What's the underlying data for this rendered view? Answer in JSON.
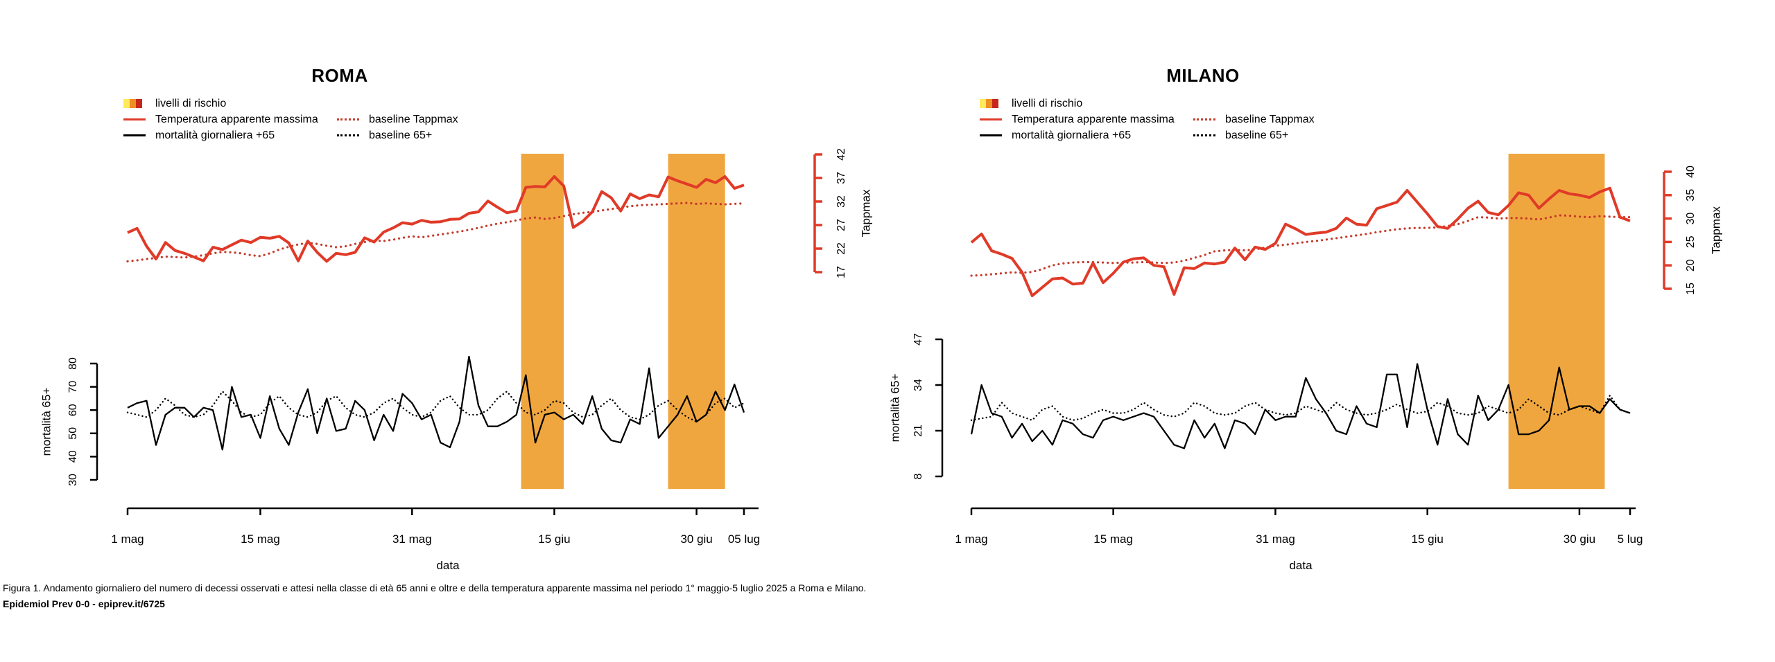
{
  "figure": {
    "caption": "Figura 1. Andamento giornaliero del numero di decessi osservati e attesi nella classe di età 65 anni e oltre e della temperatura apparente massima nel periodo 1° maggio-5 luglio 2025 a Roma e Milano.",
    "source": "Epidemiol Prev 0-0 - epiprev.it/6725"
  },
  "legend": {
    "risk_label": "livelli di rischio",
    "temp_label": "Temperatura apparente massima",
    "temp_baseline_label": "baseline Tappmax",
    "mort_label": "mortalità giornaliera +65",
    "mort_baseline_label": "baseline 65+"
  },
  "colors": {
    "temperature": "#e03a28",
    "temperature_baseline": "#c53a2a",
    "mortality": "#000000",
    "risk_band": "#f0a63e",
    "risk_swatch_yellow": "#ffe95c",
    "risk_swatch_orange": "#ee8f22",
    "risk_swatch_red": "#c5271d",
    "text": "#000000"
  },
  "chart_data": [
    {
      "type": "line",
      "title": "ROMA",
      "xlabel": "data",
      "x_ticks": [
        {
          "label": "1 mag",
          "day": 0
        },
        {
          "label": "15 mag",
          "day": 14
        },
        {
          "label": "31 mag",
          "day": 30
        },
        {
          "label": "15 giu",
          "day": 45
        },
        {
          "label": "30 giu",
          "day": 60
        },
        {
          "label": "05 lug",
          "day": 65
        }
      ],
      "temp_axis": {
        "label": "Tappmax",
        "min": 17,
        "max": 42,
        "ticks": [
          17,
          22,
          27,
          32,
          37,
          42
        ]
      },
      "mort_axis": {
        "label": "mortalità 65+",
        "min": 30,
        "max": 80,
        "ticks": [
          30,
          40,
          50,
          60,
          70,
          80
        ]
      },
      "risk_bands": [
        {
          "start_day": 41.5,
          "end_day": 46.0
        },
        {
          "start_day": 57.0,
          "end_day": 63.0
        }
      ],
      "series": {
        "tappmax": [
          25.4,
          26.3,
          22.5,
          19.8,
          23.3,
          21.6,
          21.0,
          20.2,
          19.4,
          22.3,
          21.8,
          22.8,
          23.8,
          23.3,
          24.4,
          24.2,
          24.6,
          23.2,
          19.4,
          23.6,
          21.2,
          19.3,
          21.0,
          20.7,
          21.2,
          24.3,
          23.4,
          25.5,
          26.4,
          27.5,
          27.2,
          28.0,
          27.6,
          27.7,
          28.2,
          28.3,
          29.5,
          29.8,
          32.1,
          30.8,
          29.6,
          30.0,
          35.0,
          35.2,
          35.1,
          37.3,
          35.3,
          26.5,
          27.8,
          29.8,
          34.1,
          32.8,
          30.0,
          33.6,
          32.6,
          33.4,
          33.0,
          37.2,
          36.4,
          35.7,
          35.0,
          36.7,
          36.0,
          37.3,
          34.8,
          35.5
        ],
        "baseline_tappmax": [
          19.3,
          19.5,
          19.8,
          20.0,
          20.3,
          20.2,
          20.1,
          20.3,
          20.6,
          21.0,
          21.3,
          21.2,
          21.0,
          20.6,
          20.4,
          21.0,
          21.8,
          22.4,
          22.9,
          23.2,
          23.0,
          22.6,
          22.3,
          22.5,
          23.0,
          23.4,
          23.7,
          23.6,
          23.9,
          24.3,
          24.6,
          24.4,
          24.7,
          25.0,
          25.3,
          25.6,
          26.0,
          26.4,
          26.9,
          27.3,
          27.6,
          28.0,
          28.4,
          28.6,
          28.3,
          28.5,
          28.9,
          29.3,
          29.6,
          29.8,
          30.1,
          30.4,
          30.7,
          31.0,
          31.2,
          31.3,
          31.4,
          31.5,
          31.6,
          31.7,
          31.5,
          31.6,
          31.5,
          31.4,
          31.5,
          31.6
        ],
        "mortality_65plus": [
          61,
          63,
          64,
          45,
          58,
          61,
          61,
          57,
          61,
          60,
          43,
          70,
          57,
          58,
          48,
          66,
          52,
          45,
          59,
          69,
          50,
          65,
          51,
          52,
          64,
          60,
          47,
          58,
          51,
          67,
          63,
          56,
          58,
          46,
          44,
          55,
          83,
          62,
          53,
          53,
          55,
          58,
          75,
          46,
          58,
          59,
          56,
          58,
          54,
          66,
          52,
          47,
          46,
          56,
          54,
          78,
          48,
          53,
          58,
          66,
          55,
          58,
          68,
          60,
          71,
          59
        ],
        "baseline_65plus": [
          59,
          58,
          57,
          60,
          65,
          62,
          58,
          57,
          58,
          62,
          68,
          64,
          59,
          57,
          58,
          63,
          66,
          61,
          58,
          57,
          59,
          64,
          66,
          61,
          58,
          57,
          59,
          63,
          65,
          61,
          58,
          57,
          59,
          64,
          66,
          61,
          58,
          58,
          60,
          65,
          68,
          63,
          59,
          58,
          60,
          64,
          63,
          59,
          57,
          58,
          62,
          65,
          60,
          57,
          56,
          58,
          62,
          64,
          60,
          57,
          55,
          58,
          63,
          65,
          61,
          63
        ]
      }
    },
    {
      "type": "line",
      "title": "MILANO",
      "xlabel": "data",
      "x_ticks": [
        {
          "label": "1 mag",
          "day": 0
        },
        {
          "label": "15 mag",
          "day": 14
        },
        {
          "label": "31 mag",
          "day": 30
        },
        {
          "label": "15 giu",
          "day": 45
        },
        {
          "label": "30 giu",
          "day": 60
        },
        {
          "label": "5 lug",
          "day": 65
        }
      ],
      "temp_axis": {
        "label": "Tappmax",
        "min": 15,
        "max": 40,
        "ticks": [
          15,
          20,
          25,
          30,
          35,
          40
        ]
      },
      "mort_axis": {
        "label": "mortalità 65+",
        "min": 8,
        "max": 47,
        "ticks": [
          8,
          21,
          34,
          47
        ]
      },
      "risk_bands": [
        {
          "start_day": 53.0,
          "end_day": 62.5
        }
      ],
      "series": {
        "tappmax": [
          24.9,
          26.7,
          23.1,
          22.4,
          21.5,
          18.5,
          13.5,
          15.3,
          17.1,
          17.3,
          16.0,
          16.2,
          20.5,
          16.3,
          18.3,
          20.7,
          21.4,
          21.6,
          20.0,
          19.7,
          13.8,
          19.5,
          19.3,
          20.5,
          20.3,
          20.7,
          23.7,
          21.2,
          23.9,
          23.4,
          24.7,
          28.8,
          27.8,
          26.6,
          26.9,
          27.1,
          27.9,
          30.1,
          28.8,
          28.6,
          32.1,
          32.8,
          33.5,
          36.0,
          33.5,
          31.0,
          28.3,
          27.9,
          29.9,
          32.2,
          33.7,
          31.3,
          30.8,
          32.8,
          35.5,
          35.0,
          32.2,
          34.2,
          36.0,
          35.3,
          35.0,
          34.5,
          35.7,
          36.5,
          30.3,
          29.5
        ],
        "baseline_tappmax": [
          17.8,
          17.9,
          18.1,
          18.3,
          18.5,
          18.4,
          18.6,
          19.2,
          20.0,
          20.4,
          20.6,
          20.7,
          20.7,
          20.6,
          20.5,
          20.6,
          20.6,
          20.7,
          20.6,
          20.5,
          20.6,
          21.0,
          21.6,
          22.2,
          23.0,
          23.2,
          23.3,
          23.2,
          23.4,
          23.8,
          24.2,
          24.4,
          24.7,
          25.0,
          25.2,
          25.5,
          25.8,
          26.1,
          26.4,
          26.7,
          27.1,
          27.4,
          27.7,
          27.9,
          28.0,
          28.0,
          28.1,
          28.4,
          28.8,
          29.5,
          30.3,
          30.2,
          30.0,
          30.1,
          30.1,
          30.0,
          29.8,
          30.2,
          30.7,
          30.6,
          30.4,
          30.3,
          30.5,
          30.4,
          30.3,
          30.3
        ],
        "mortality_65plus": [
          20,
          34,
          26,
          25,
          19,
          23,
          18,
          21,
          17,
          24,
          23,
          20,
          19,
          24,
          25,
          24,
          25,
          26,
          25,
          21,
          17,
          16,
          24,
          19,
          23,
          16,
          24,
          23,
          20,
          27,
          24,
          25,
          25,
          36,
          30,
          26,
          21,
          20,
          28,
          23,
          22,
          37,
          37,
          22,
          40,
          27,
          17,
          30,
          20,
          17,
          31,
          24,
          27,
          34,
          20,
          20,
          21,
          24,
          39,
          27,
          28,
          28,
          26,
          30,
          27,
          26
        ],
        "baseline_65plus": [
          24,
          24.5,
          25,
          29,
          26,
          25,
          24,
          27,
          28,
          25,
          24,
          24.5,
          26,
          27,
          26,
          26,
          27,
          29,
          27,
          25.5,
          25,
          26,
          29,
          28,
          26,
          25.5,
          26,
          28,
          29,
          27,
          26,
          25.5,
          26,
          28,
          27,
          26,
          29,
          27,
          26,
          25.5,
          26,
          27,
          28.5,
          27,
          26,
          26.5,
          29,
          28,
          26,
          25.5,
          26,
          28,
          27,
          26,
          27,
          30,
          28,
          26,
          25.5,
          27,
          28,
          27,
          26,
          31,
          27,
          26
        ]
      }
    }
  ]
}
